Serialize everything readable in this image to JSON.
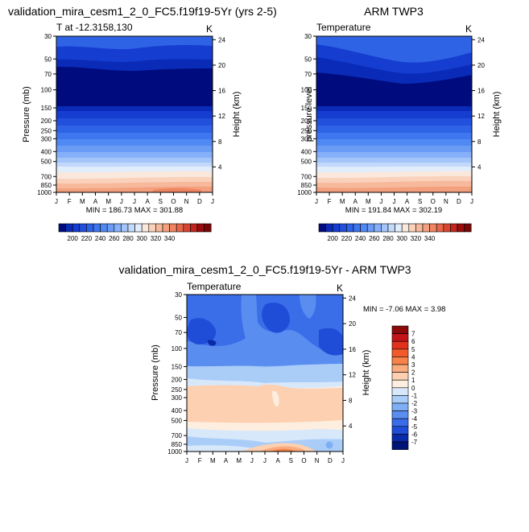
{
  "chart_data": [
    {
      "type": "heatmap",
      "title": "validation_mira_cesm1_2_0_FC5.f19f19-5Yr (yrs 2-5)",
      "subtitle_left": "T at -12.3158,130",
      "subtitle_right": "K",
      "ylabel": "Pressure (mb)",
      "ylabel_right": "Height (km)",
      "x_ticks": [
        "J",
        "F",
        "M",
        "A",
        "M",
        "J",
        "J",
        "A",
        "S",
        "O",
        "N",
        "D",
        "J"
      ],
      "y_ticks": [
        "30",
        "50",
        "70",
        "100",
        "150",
        "200",
        "250",
        "300",
        "400",
        "500",
        "700",
        "850",
        "1000"
      ],
      "y_ticks_right": [
        "24",
        "20",
        "16",
        "12",
        "8",
        "4"
      ],
      "summary": "MIN = 186.73 MAX = 301.88",
      "colorbar": {
        "orientation": "horizontal",
        "labels": [
          "200",
          "220",
          "240",
          "260",
          "280",
          "300",
          "320",
          "340"
        ]
      },
      "colors": [
        "#000c7d",
        "#0a2bb8",
        "#153dd0",
        "#2250dc",
        "#2f63e6",
        "#3d76ee",
        "#5189f2",
        "#6a9bf5",
        "#86b0f7",
        "#a4c5fa",
        "#c3d9fb",
        "#e2edfc",
        "#fbe8dc",
        "#fad1bb",
        "#f7b99b",
        "#f3a07e",
        "#ee8462",
        "#e5664a",
        "#d84632",
        "#c2251e",
        "#9b0b0e",
        "#780606"
      ]
    },
    {
      "type": "heatmap",
      "title": "ARM TWP3",
      "subtitle_left": "Temperature",
      "subtitle_right": "K",
      "ylabel": "pressure level",
      "ylabel_right": "Height (km)",
      "x_ticks": [
        "J",
        "F",
        "M",
        "A",
        "M",
        "J",
        "J",
        "A",
        "S",
        "O",
        "N",
        "D",
        "J"
      ],
      "y_ticks": [
        "30",
        "50",
        "70",
        "100",
        "150",
        "200",
        "250",
        "300",
        "400",
        "500",
        "700",
        "850",
        "1000"
      ],
      "y_ticks_right": [
        "24",
        "20",
        "16",
        "12",
        "8",
        "4"
      ],
      "summary": "MIN = 191.84 MAX = 302.19",
      "colorbar": {
        "orientation": "horizontal",
        "labels": [
          "200",
          "220",
          "240",
          "260",
          "280",
          "300",
          "320",
          "340"
        ]
      }
    },
    {
      "type": "heatmap",
      "title": "validation_mira_cesm1_2_0_FC5.f19f19-5Yr - ARM TWP3",
      "subtitle_left": "Temperature",
      "subtitle_right": "K",
      "ylabel": "Pressure (mb)",
      "ylabel_right": "Height (km)",
      "x_ticks": [
        "J",
        "F",
        "M",
        "A",
        "M",
        "J",
        "J",
        "A",
        "S",
        "O",
        "N",
        "D",
        "J"
      ],
      "y_ticks": [
        "30",
        "50",
        "70",
        "100",
        "150",
        "200",
        "250",
        "300",
        "400",
        "500",
        "700",
        "850",
        "1000"
      ],
      "y_ticks_right": [
        "24",
        "20",
        "16",
        "12",
        "8",
        "4"
      ],
      "summary": "MIN = -7.06 MAX =   3.98",
      "colorbar": {
        "orientation": "vertical",
        "labels": [
          "7",
          "6",
          "5",
          "4",
          "3",
          "2",
          "1",
          "0",
          "-1",
          "-2",
          "-3",
          "-4",
          "-5",
          "-6",
          "-7"
        ]
      },
      "colors": [
        "#8b0a0a",
        "#c3141a",
        "#e2321e",
        "#f35a2a",
        "#f8824a",
        "#fbac7e",
        "#fcd0b0",
        "#fdeee0",
        "#d8e8fb",
        "#aacdf8",
        "#7eaef5",
        "#5a8df0",
        "#3a6de8",
        "#1f4dd8",
        "#0a2aa8",
        "#001478"
      ]
    }
  ]
}
